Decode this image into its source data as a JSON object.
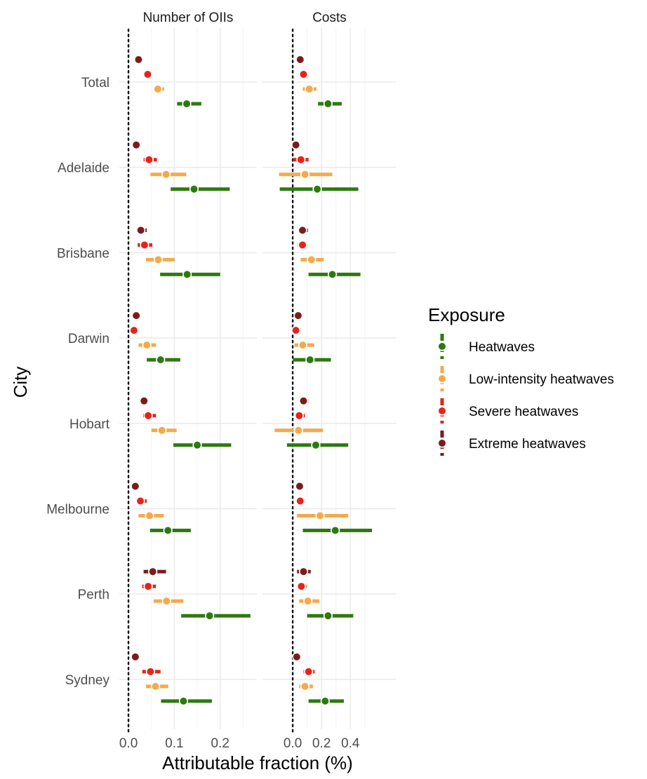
{
  "chart_data": {
    "type": "forest-plot",
    "xlabel": "Attributable fraction (%)",
    "ylabel": "City",
    "legend": {
      "title": "Exposure",
      "placement": "right",
      "items": [
        {
          "name": "Heatwaves",
          "color": "#2d7a0e"
        },
        {
          "name": "Low-intensity heatwaves",
          "color": "#f5a94a"
        },
        {
          "name": "Severe heatwaves",
          "color": "#e8231a"
        },
        {
          "name": "Extreme heatwaves",
          "color": "#7b1c1c"
        }
      ]
    },
    "categories": [
      "Total",
      "Adelaide",
      "Brisbane",
      "Darwin",
      "Hobart",
      "Melbourne",
      "Perth",
      "Sydney"
    ],
    "reference_line": 0,
    "grid": true,
    "panels": [
      {
        "title": "Number of OIIs",
        "xlim": [
          -0.02,
          0.28
        ],
        "ticks": [
          0.0,
          0.1,
          0.2
        ],
        "tick_labels": [
          "0.0",
          "0.1",
          "0.2"
        ],
        "series": [
          {
            "name": "Extreme heatwaves",
            "est": [
              0.022,
              0.017,
              0.027,
              0.017,
              0.034,
              0.015,
              0.053,
              0.015
            ],
            "lo": [
              0.022,
              0.017,
              0.018,
              0.017,
              0.025,
              0.015,
              0.033,
              0.015
            ],
            "hi": [
              0.022,
              0.017,
              0.04,
              0.017,
              0.043,
              0.015,
              0.082,
              0.015
            ]
          },
          {
            "name": "Severe heatwaves",
            "est": [
              0.042,
              0.045,
              0.035,
              0.012,
              0.043,
              0.026,
              0.043,
              0.048
            ],
            "lo": [
              0.038,
              0.033,
              0.02,
              0.012,
              0.032,
              0.018,
              0.03,
              0.03
            ],
            "hi": [
              0.05,
              0.062,
              0.052,
              0.012,
              0.06,
              0.04,
              0.06,
              0.07
            ],
            "lo_line": [
              false,
              true,
              true,
              false,
              true,
              true,
              true,
              true
            ]
          },
          {
            "name": "Low-intensity heatwaves",
            "est": [
              0.064,
              0.082,
              0.065,
              0.04,
              0.073,
              0.046,
              0.083,
              0.059
            ],
            "lo": [
              0.055,
              0.048,
              0.038,
              0.022,
              0.05,
              0.022,
              0.055,
              0.038
            ],
            "hi": [
              0.078,
              0.126,
              0.101,
              0.06,
              0.105,
              0.077,
              0.12,
              0.087
            ]
          },
          {
            "name": "Heatwaves",
            "est": [
              0.127,
              0.143,
              0.128,
              0.07,
              0.15,
              0.086,
              0.177,
              0.12
            ],
            "lo": [
              0.106,
              0.092,
              0.069,
              0.04,
              0.098,
              0.047,
              0.115,
              0.071
            ],
            "hi": [
              0.159,
              0.221,
              0.2,
              0.113,
              0.224,
              0.136,
              0.266,
              0.182
            ]
          }
        ]
      },
      {
        "title": "Costs",
        "xlim": [
          -0.21,
          0.72
        ],
        "ticks": [
          0.0,
          0.2,
          0.4
        ],
        "tick_labels": [
          "0.0",
          "0.2",
          "0.4"
        ],
        "series": [
          {
            "name": "Extreme heatwaves",
            "est": [
              0.052,
              0.022,
              0.068,
              0.038,
              0.075,
              0.048,
              0.075,
              0.028
            ],
            "lo": [
              0.052,
              0.022,
              0.038,
              0.022,
              0.045,
              0.04,
              0.03,
              0.028
            ],
            "hi": [
              0.052,
              0.022,
              0.105,
              0.062,
              0.108,
              0.065,
              0.125,
              0.028
            ]
          },
          {
            "name": "Severe heatwaves",
            "est": [
              0.075,
              0.057,
              0.068,
              0.022,
              0.045,
              0.052,
              0.06,
              0.11
            ],
            "lo": [
              0.075,
              0.002,
              0.035,
              0.012,
              0.022,
              0.03,
              0.035,
              0.075
            ],
            "hi": [
              0.075,
              0.11,
              0.1,
              0.022,
              0.085,
              0.085,
              0.095,
              0.152
            ]
          },
          {
            "name": "Low-intensity heatwaves",
            "est": [
              0.115,
              0.085,
              0.13,
              0.07,
              0.04,
              0.19,
              0.105,
              0.085
            ],
            "lo": [
              0.07,
              -0.095,
              0.055,
              0.012,
              -0.125,
              0.03,
              0.045,
              0.045
            ],
            "hi": [
              0.165,
              0.275,
              0.215,
              0.15,
              0.21,
              0.385,
              0.185,
              0.14
            ]
          },
          {
            "name": "Heatwaves",
            "est": [
              0.245,
              0.17,
              0.275,
              0.12,
              0.16,
              0.295,
              0.245,
              0.225
            ],
            "lo": [
              0.175,
              -0.09,
              0.11,
              0.002,
              -0.04,
              0.07,
              0.1,
              0.11
            ],
            "hi": [
              0.34,
              0.455,
              0.47,
              0.265,
              0.385,
              0.55,
              0.42,
              0.355
            ]
          }
        ]
      }
    ]
  }
}
